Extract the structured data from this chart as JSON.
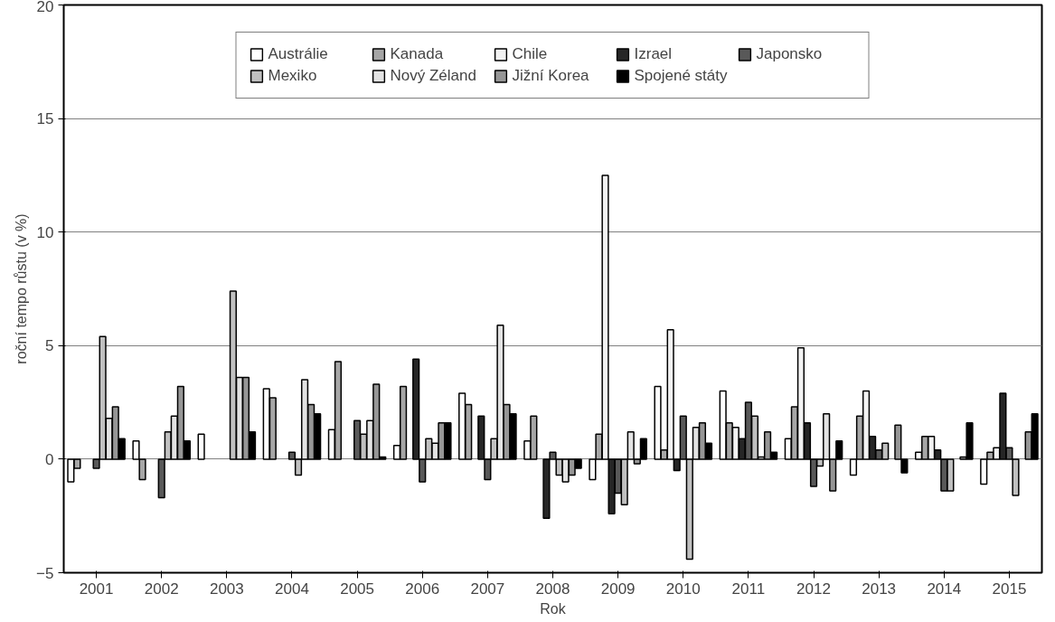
{
  "chart_data": {
    "type": "bar",
    "xlabel": "Rok",
    "ylabel": "roční tempo růstu (v %)",
    "categories": [
      "2001",
      "2002",
      "2003",
      "2004",
      "2005",
      "2006",
      "2007",
      "2008",
      "2009",
      "2010",
      "2011",
      "2012",
      "2013",
      "2014",
      "2015"
    ],
    "series": [
      {
        "name": "Austrálie",
        "color": "#ffffff",
        "values": [
          -1.0,
          0.8,
          1.1,
          3.1,
          1.3,
          0.6,
          2.9,
          0.8,
          -0.9,
          3.2,
          3.0,
          0.9,
          -0.7,
          0.3,
          -1.1
        ]
      },
      {
        "name": "Kanada",
        "color": "#a6a6a6",
        "values": [
          -0.4,
          -0.9,
          null,
          2.7,
          4.3,
          3.2,
          2.4,
          1.9,
          1.1,
          0.4,
          1.6,
          2.3,
          1.9,
          1.0,
          0.3
        ]
      },
      {
        "name": "Chile",
        "color": "#f2f2f2",
        "values": [
          null,
          null,
          null,
          null,
          null,
          null,
          null,
          null,
          12.5,
          5.7,
          1.4,
          4.9,
          3.0,
          1.0,
          0.5
        ]
      },
      {
        "name": "Izrael",
        "color": "#262626",
        "values": [
          null,
          null,
          null,
          null,
          null,
          4.4,
          1.9,
          -2.6,
          -2.4,
          -0.5,
          0.9,
          1.6,
          1.0,
          0.4,
          2.9
        ]
      },
      {
        "name": "Japonsko",
        "color": "#595959",
        "values": [
          -0.4,
          -1.7,
          null,
          0.3,
          1.7,
          -1.0,
          -0.9,
          0.3,
          -1.5,
          1.9,
          2.5,
          -1.2,
          0.4,
          -1.4,
          0.5
        ]
      },
      {
        "name": "Mexiko",
        "color": "#c0c0c0",
        "values": [
          5.4,
          1.2,
          7.4,
          -0.7,
          1.1,
          0.9,
          0.9,
          -0.7,
          -2.0,
          -4.4,
          1.9,
          -0.3,
          0.7,
          -1.4,
          -1.6
        ]
      },
      {
        "name": "Nový Zéland",
        "color": "#e3e3e3",
        "values": [
          1.8,
          1.9,
          3.6,
          3.5,
          1.7,
          0.7,
          5.9,
          -1.0,
          1.2,
          1.4,
          0.1,
          2.0,
          null,
          null,
          null
        ]
      },
      {
        "name": "Jižní Korea",
        "color": "#969696",
        "values": [
          2.3,
          3.2,
          3.6,
          2.4,
          3.3,
          1.6,
          2.4,
          -0.7,
          -0.2,
          1.6,
          1.2,
          -1.4,
          1.5,
          0.1,
          1.2
        ]
      },
      {
        "name": "Spojené státy",
        "color": "#000000",
        "values": [
          0.9,
          0.8,
          1.2,
          2.0,
          0.1,
          1.6,
          2.0,
          -0.4,
          0.9,
          0.7,
          0.3,
          0.8,
          -0.6,
          1.6,
          2.0
        ]
      }
    ],
    "ylim": [
      -5,
      20
    ],
    "yticks": [
      -5,
      0,
      5,
      10,
      15,
      20
    ],
    "grid": "y",
    "legend": "top"
  }
}
